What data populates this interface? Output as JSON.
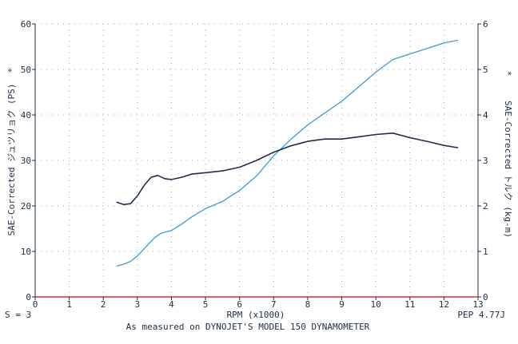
{
  "chart_data": {
    "type": "line",
    "xlabel": "RPM (x1000)",
    "ylabel_left": "SAE-Corrected ジュツリョク (PS)",
    "ylabel_right": "SAE-Corrected トルク (kg-m)",
    "left_marker": "*",
    "right_marker": "*",
    "xlim": [
      0,
      13
    ],
    "ylim_left": [
      0,
      60
    ],
    "ylim_right": [
      0,
      6
    ],
    "x_ticks": [
      "0",
      "1",
      "2",
      "3",
      "4",
      "5",
      "6",
      "7",
      "8",
      "9",
      "10",
      "11",
      "12",
      "13"
    ],
    "y_ticks_left": [
      "0",
      "10",
      "20",
      "30",
      "40",
      "50",
      "60"
    ],
    "y_ticks_right": [
      "0",
      "1",
      "2",
      "3",
      "4",
      "5",
      "6"
    ],
    "grid": true,
    "series": [
      {
        "axis": "left",
        "color": "#3d9ad6",
        "points": [
          [
            2.4,
            6.8
          ],
          [
            2.6,
            7.2
          ],
          [
            2.8,
            7.8
          ],
          [
            3.0,
            9.0
          ],
          [
            3.2,
            10.6
          ],
          [
            3.5,
            13.0
          ],
          [
            3.7,
            14.0
          ],
          [
            4.0,
            14.6
          ],
          [
            4.3,
            16.0
          ],
          [
            4.6,
            17.6
          ],
          [
            5.0,
            19.4
          ],
          [
            5.5,
            21.0
          ],
          [
            6.0,
            23.4
          ],
          [
            6.5,
            26.6
          ],
          [
            7.0,
            31.0
          ],
          [
            7.5,
            34.6
          ],
          [
            8.0,
            37.8
          ],
          [
            8.5,
            40.4
          ],
          [
            9.0,
            43.0
          ],
          [
            9.5,
            46.2
          ],
          [
            10.0,
            49.4
          ],
          [
            10.5,
            52.2
          ],
          [
            11.0,
            53.4
          ],
          [
            11.5,
            54.6
          ],
          [
            12.0,
            55.8
          ],
          [
            12.4,
            56.4
          ]
        ]
      },
      {
        "axis": "right",
        "color": "#1f2d4c",
        "points": [
          [
            2.4,
            2.08
          ],
          [
            2.6,
            2.03
          ],
          [
            2.8,
            2.05
          ],
          [
            3.0,
            2.22
          ],
          [
            3.2,
            2.45
          ],
          [
            3.4,
            2.63
          ],
          [
            3.6,
            2.67
          ],
          [
            3.8,
            2.6
          ],
          [
            4.0,
            2.58
          ],
          [
            4.3,
            2.63
          ],
          [
            4.6,
            2.7
          ],
          [
            5.0,
            2.73
          ],
          [
            5.5,
            2.77
          ],
          [
            6.0,
            2.85
          ],
          [
            6.5,
            3.0
          ],
          [
            7.0,
            3.18
          ],
          [
            7.5,
            3.32
          ],
          [
            8.0,
            3.42
          ],
          [
            8.5,
            3.47
          ],
          [
            9.0,
            3.47
          ],
          [
            9.5,
            3.52
          ],
          [
            10.0,
            3.57
          ],
          [
            10.5,
            3.6
          ],
          [
            11.0,
            3.5
          ],
          [
            11.5,
            3.42
          ],
          [
            12.0,
            3.33
          ],
          [
            12.4,
            3.28
          ]
        ]
      }
    ]
  },
  "footer": {
    "left": "S = 3",
    "center": "As measured on DYNOJET'S MODEL 150 DYNAMOMETER",
    "right": "PEP 4.77J"
  },
  "colors": {
    "axis": "#1c2c44",
    "grid": "#9aa3b0",
    "zero_line": "#e03030",
    "left_marker": "#3d9ad6",
    "right_marker": "#1c2c44"
  }
}
